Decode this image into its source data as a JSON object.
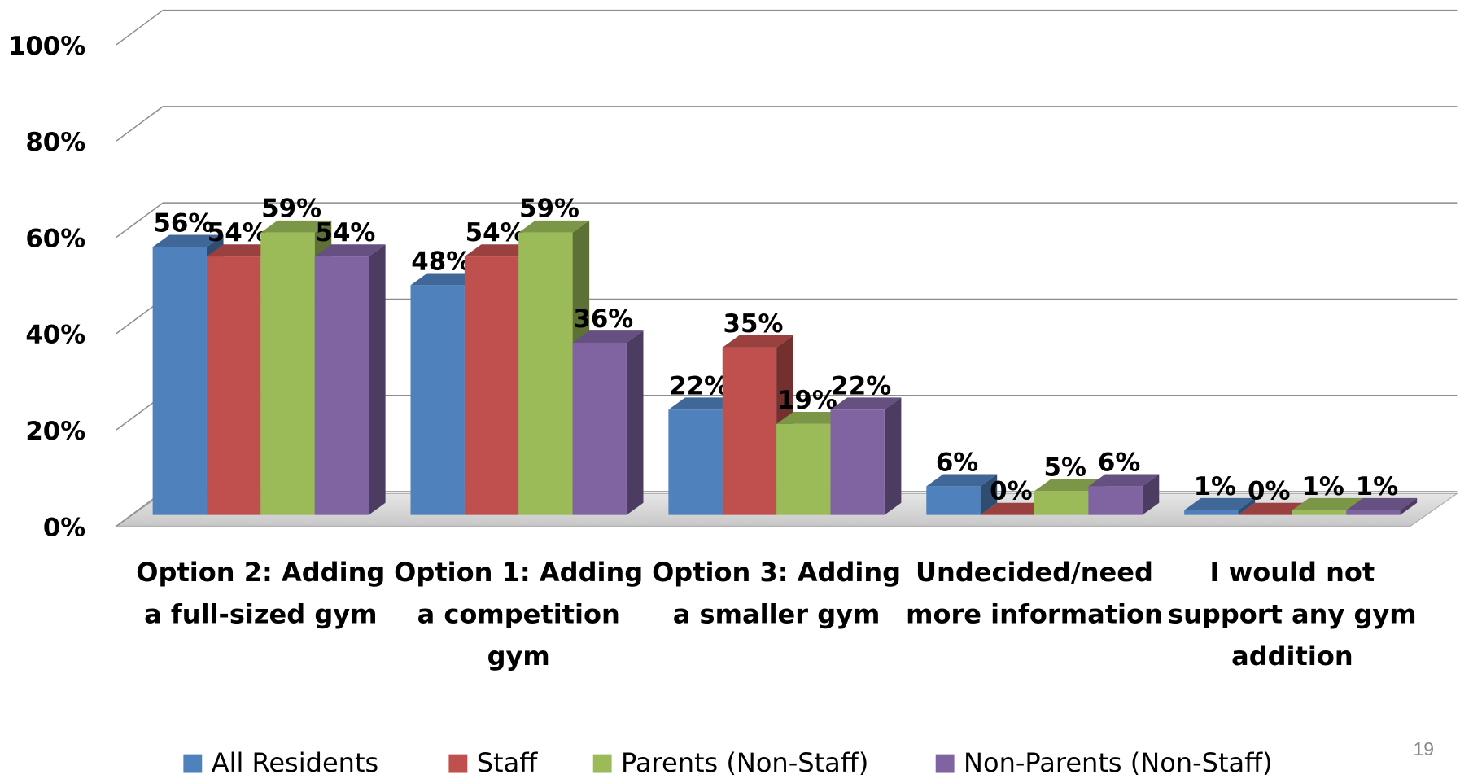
{
  "chart_data": {
    "type": "bar3d",
    "categories": [
      "Option 2: Adding a full-sized gym",
      "Option 1: Adding a competition gym",
      "Option 3: Adding a smaller gym",
      "Undecided/need more information",
      "I would not support any gym addition"
    ],
    "series": [
      {
        "name": "All Residents",
        "color": "#4f81bd",
        "values": [
          56,
          48,
          22,
          6,
          1
        ],
        "value_labels": [
          "56%",
          "48%",
          "22%",
          "6%",
          "1%"
        ]
      },
      {
        "name": "Staff",
        "color": "#c0504d",
        "values": [
          54,
          54,
          35,
          0,
          0
        ],
        "value_labels": [
          "54%",
          "54%",
          "35%",
          "0%",
          "0%"
        ]
      },
      {
        "name": "Parents (Non-Staff)",
        "color": "#9bbb59",
        "values": [
          59,
          59,
          19,
          5,
          1
        ],
        "value_labels": [
          "59%",
          "59%",
          "19%",
          "5%",
          "1%"
        ]
      },
      {
        "name": "Non-Parents (Non-Staff)",
        "color": "#8064a2",
        "values": [
          54,
          36,
          22,
          6,
          1
        ],
        "value_labels": [
          "54%",
          "36%",
          "22%",
          "6%",
          "1%"
        ]
      }
    ],
    "ylim": [
      0,
      100
    ],
    "yticks": [
      {
        "value": 0,
        "label": "0%"
      },
      {
        "value": 20,
        "label": "20%"
      },
      {
        "value": 40,
        "label": "40%"
      },
      {
        "value": 60,
        "label": "60%"
      },
      {
        "value": 80,
        "label": "80%"
      },
      {
        "value": 100,
        "label": "100%"
      }
    ],
    "grid": true,
    "legend": "bottom"
  },
  "page_number": "19"
}
